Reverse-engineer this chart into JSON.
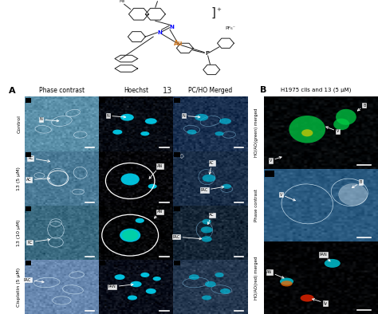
{
  "figure_width": 4.74,
  "figure_height": 3.94,
  "dpi": 100,
  "background_color": "#ffffff",
  "top_label_A": "A",
  "top_label_B": "B",
  "col_headers": [
    "Phase contrast",
    "Hoechst",
    "PC/HO Merged"
  ],
  "row_labels": [
    "Control",
    "13 (5 μM)",
    "13 (10 μM)",
    "Cisplatin (5 μM)"
  ],
  "panel_B_title": "H1975 clls and 13 (5 μM)",
  "panel_B_rows": [
    "HO/AO(green) merged",
    "Phase contrast",
    "HO/AO(red) merged"
  ],
  "grid_A_rows": 4,
  "grid_A_cols": 3,
  "cell_bg_colors": [
    [
      "#5a8fa8",
      "#06090e",
      "#203858"
    ],
    [
      "#4a7a96",
      "#040408",
      "#1a2e48"
    ],
    [
      "#3a6a80",
      "#030406",
      "#152535"
    ],
    [
      "#6888b0",
      "#080c18",
      "#253850"
    ]
  ],
  "B_bg_colors": [
    "#040608",
    "#1a3d5c",
    "#030408"
  ],
  "annotation_fontsize": 3.5,
  "row_label_fontsize": 4.5,
  "col_header_fontsize": 5.5,
  "panel_label_fontsize": 8,
  "B_title_fontsize": 5.0,
  "B_row_label_fontsize": 4.0,
  "molecule_label_fontsize": 7
}
